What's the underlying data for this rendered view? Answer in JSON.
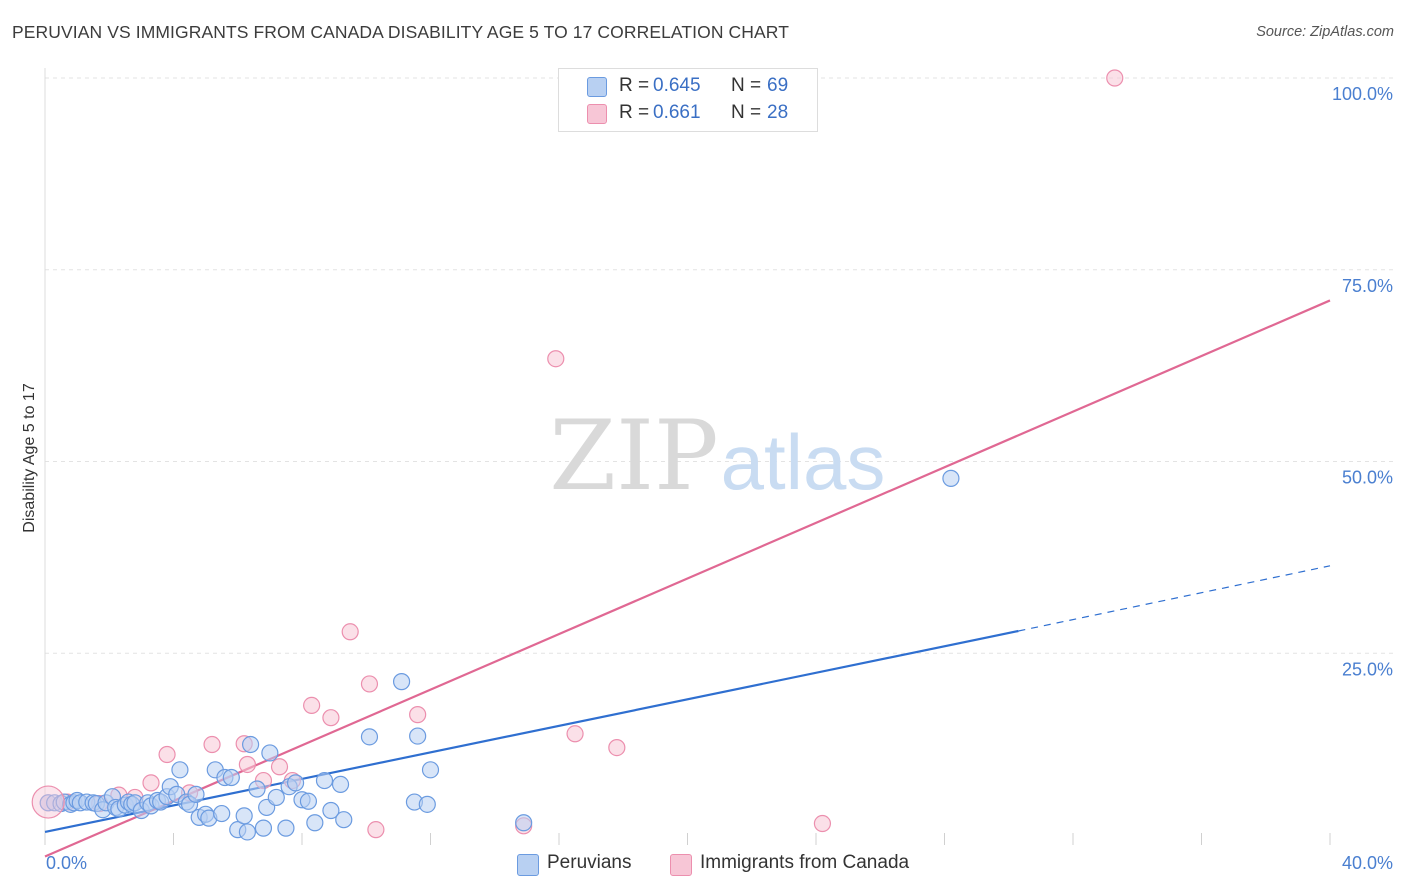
{
  "header": {
    "title": "PERUVIAN VS IMMIGRANTS FROM CANADA DISABILITY AGE 5 TO 17 CORRELATION CHART",
    "source": "Source: ZipAtlas.com"
  },
  "watermark": {
    "zip": "ZIP",
    "atlas": "atlas"
  },
  "legend": {
    "rows": [
      {
        "r_label": "R =",
        "r_value": "0.645",
        "n_label": "N =",
        "n_value": "69"
      },
      {
        "r_label": "R =",
        "r_value": "0.661",
        "n_label": "N =",
        "n_value": "28"
      }
    ]
  },
  "colors": {
    "blue_fill": "#b8d0f2",
    "blue_stroke": "#6b9be0",
    "blue_line": "#2f6fd0",
    "pink_fill": "#f7c6d6",
    "pink_stroke": "#ec8fae",
    "pink_line": "#e06893",
    "tick_text": "#4a7fd0"
  },
  "chart_data": {
    "type": "scatter",
    "title": "PERUVIAN VS IMMIGRANTS FROM CANADA DISABILITY AGE 5 TO 17 CORRELATION CHART",
    "xlabel": "",
    "ylabel": "Disability Age 5 to 17",
    "xlim": [
      0,
      40
    ],
    "ylim": [
      0,
      100
    ],
    "x_ticks": [
      "0.0%",
      "40.0%"
    ],
    "y_ticks": [
      "25.0%",
      "50.0%",
      "75.0%",
      "100.0%"
    ],
    "grid": true,
    "legend_position": "top-center",
    "series": [
      {
        "name": "Peruvians",
        "r": 0.645,
        "n": 69,
        "color": "#6b9be0",
        "points": [
          [
            0.1,
            5.5
          ],
          [
            0.3,
            5.5
          ],
          [
            0.5,
            5.4
          ],
          [
            0.6,
            5.6
          ],
          [
            0.8,
            5.3
          ],
          [
            0.9,
            5.5
          ],
          [
            1.0,
            5.8
          ],
          [
            1.1,
            5.5
          ],
          [
            1.3,
            5.6
          ],
          [
            1.5,
            5.5
          ],
          [
            1.6,
            5.4
          ],
          [
            1.8,
            4.6
          ],
          [
            1.9,
            5.5
          ],
          [
            2.1,
            6.3
          ],
          [
            2.2,
            4.9
          ],
          [
            2.3,
            4.7
          ],
          [
            2.5,
            5.2
          ],
          [
            2.6,
            5.6
          ],
          [
            2.7,
            5.3
          ],
          [
            2.8,
            5.5
          ],
          [
            3.0,
            4.5
          ],
          [
            3.2,
            5.5
          ],
          [
            3.3,
            5.1
          ],
          [
            3.5,
            5.8
          ],
          [
            3.6,
            5.6
          ],
          [
            3.8,
            6.3
          ],
          [
            3.9,
            7.6
          ],
          [
            4.1,
            6.6
          ],
          [
            4.2,
            9.8
          ],
          [
            4.4,
            5.6
          ],
          [
            4.5,
            5.3
          ],
          [
            4.7,
            6.6
          ],
          [
            4.8,
            3.6
          ],
          [
            5.0,
            4.0
          ],
          [
            5.1,
            3.5
          ],
          [
            5.3,
            9.8
          ],
          [
            5.5,
            4.1
          ],
          [
            5.6,
            8.8
          ],
          [
            5.8,
            8.8
          ],
          [
            6.0,
            2.0
          ],
          [
            6.2,
            3.8
          ],
          [
            6.3,
            1.7
          ],
          [
            6.4,
            13.1
          ],
          [
            6.6,
            7.3
          ],
          [
            6.8,
            2.2
          ],
          [
            6.9,
            4.9
          ],
          [
            7.0,
            12.0
          ],
          [
            7.2,
            6.2
          ],
          [
            7.5,
            2.2
          ],
          [
            7.6,
            7.6
          ],
          [
            7.8,
            8.1
          ],
          [
            8.0,
            5.9
          ],
          [
            8.2,
            5.7
          ],
          [
            8.4,
            2.9
          ],
          [
            8.7,
            8.4
          ],
          [
            8.9,
            4.5
          ],
          [
            9.2,
            7.9
          ],
          [
            9.3,
            3.3
          ],
          [
            10.1,
            14.1
          ],
          [
            11.1,
            21.3
          ],
          [
            11.5,
            5.6
          ],
          [
            11.6,
            14.2
          ],
          [
            11.9,
            5.3
          ],
          [
            12.0,
            9.8
          ],
          [
            14.9,
            2.9
          ],
          [
            28.2,
            47.8
          ]
        ]
      },
      {
        "name": "Immigrants from Canada",
        "r": 0.661,
        "n": 28,
        "color": "#ec8fae",
        "points": [
          [
            0.1,
            5.5
          ],
          [
            0.7,
            5.6
          ],
          [
            1.7,
            5.4
          ],
          [
            2.3,
            6.5
          ],
          [
            2.8,
            6.2
          ],
          [
            3.3,
            8.1
          ],
          [
            3.8,
            11.8
          ],
          [
            4.5,
            6.8
          ],
          [
            5.2,
            13.1
          ],
          [
            6.2,
            13.2
          ],
          [
            6.3,
            10.5
          ],
          [
            6.8,
            8.4
          ],
          [
            7.3,
            10.2
          ],
          [
            7.7,
            8.4
          ],
          [
            8.3,
            18.2
          ],
          [
            8.9,
            16.6
          ],
          [
            9.5,
            27.8
          ],
          [
            10.1,
            21.0
          ],
          [
            10.3,
            2.0
          ],
          [
            11.6,
            17.0
          ],
          [
            14.9,
            2.5
          ],
          [
            15.9,
            63.4
          ],
          [
            16.5,
            14.5
          ],
          [
            17.8,
            12.7
          ],
          [
            24.2,
            2.8
          ],
          [
            33.3,
            100.0
          ]
        ]
      }
    ],
    "trend_lines": [
      {
        "series": "Peruvians",
        "from": [
          0,
          1.7
        ],
        "to": [
          30.3,
          27.9
        ],
        "dashed_to": [
          40,
          36.4
        ]
      },
      {
        "series": "Immigrants from Canada",
        "from": [
          0,
          -1.5
        ],
        "to": [
          40,
          71.0
        ]
      }
    ]
  },
  "bottom_legend": {
    "items": [
      {
        "label": "Peruvians"
      },
      {
        "label": "Immigrants from Canada"
      }
    ]
  }
}
